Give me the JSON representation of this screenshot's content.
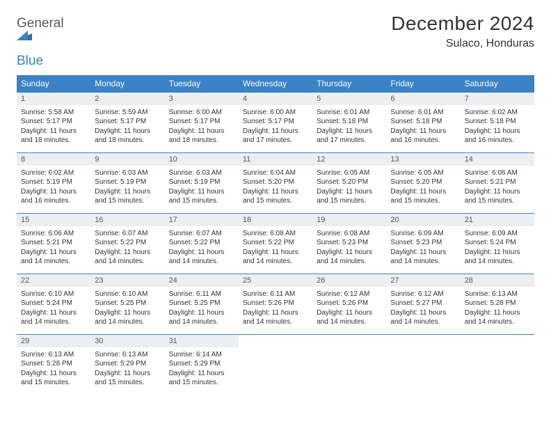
{
  "brand": {
    "general": "General",
    "blue": "Blue"
  },
  "title": "December 2024",
  "location": "Sulaco, Honduras",
  "colors": {
    "header_bg": "#3b82c4",
    "header_text": "#ffffff",
    "daynum_bg": "#eceff1",
    "border": "#3b82c4",
    "text": "#333333",
    "logo_gray": "#5a5a5a",
    "logo_blue": "#3b82c4",
    "page_bg": "#ffffff"
  },
  "fonts": {
    "title_size_pt": 21,
    "location_size_pt": 12,
    "header_size_pt": 9,
    "daynum_size_pt": 8,
    "body_size_pt": 7.5
  },
  "day_labels": [
    "Sunday",
    "Monday",
    "Tuesday",
    "Wednesday",
    "Thursday",
    "Friday",
    "Saturday"
  ],
  "weeks": [
    [
      {
        "n": "1",
        "sunrise": "Sunrise: 5:58 AM",
        "sunset": "Sunset: 5:17 PM",
        "daylight": "Daylight: 11 hours and 18 minutes."
      },
      {
        "n": "2",
        "sunrise": "Sunrise: 5:59 AM",
        "sunset": "Sunset: 5:17 PM",
        "daylight": "Daylight: 11 hours and 18 minutes."
      },
      {
        "n": "3",
        "sunrise": "Sunrise: 6:00 AM",
        "sunset": "Sunset: 5:17 PM",
        "daylight": "Daylight: 11 hours and 18 minutes."
      },
      {
        "n": "4",
        "sunrise": "Sunrise: 6:00 AM",
        "sunset": "Sunset: 5:17 PM",
        "daylight": "Daylight: 11 hours and 17 minutes."
      },
      {
        "n": "5",
        "sunrise": "Sunrise: 6:01 AM",
        "sunset": "Sunset: 5:18 PM",
        "daylight": "Daylight: 11 hours and 17 minutes."
      },
      {
        "n": "6",
        "sunrise": "Sunrise: 6:01 AM",
        "sunset": "Sunset: 5:18 PM",
        "daylight": "Daylight: 11 hours and 16 minutes."
      },
      {
        "n": "7",
        "sunrise": "Sunrise: 6:02 AM",
        "sunset": "Sunset: 5:18 PM",
        "daylight": "Daylight: 11 hours and 16 minutes."
      }
    ],
    [
      {
        "n": "8",
        "sunrise": "Sunrise: 6:02 AM",
        "sunset": "Sunset: 5:19 PM",
        "daylight": "Daylight: 11 hours and 16 minutes."
      },
      {
        "n": "9",
        "sunrise": "Sunrise: 6:03 AM",
        "sunset": "Sunset: 5:19 PM",
        "daylight": "Daylight: 11 hours and 15 minutes."
      },
      {
        "n": "10",
        "sunrise": "Sunrise: 6:03 AM",
        "sunset": "Sunset: 5:19 PM",
        "daylight": "Daylight: 11 hours and 15 minutes."
      },
      {
        "n": "11",
        "sunrise": "Sunrise: 6:04 AM",
        "sunset": "Sunset: 5:20 PM",
        "daylight": "Daylight: 11 hours and 15 minutes."
      },
      {
        "n": "12",
        "sunrise": "Sunrise: 6:05 AM",
        "sunset": "Sunset: 5:20 PM",
        "daylight": "Daylight: 11 hours and 15 minutes."
      },
      {
        "n": "13",
        "sunrise": "Sunrise: 6:05 AM",
        "sunset": "Sunset: 5:20 PM",
        "daylight": "Daylight: 11 hours and 15 minutes."
      },
      {
        "n": "14",
        "sunrise": "Sunrise: 6:06 AM",
        "sunset": "Sunset: 5:21 PM",
        "daylight": "Daylight: 11 hours and 15 minutes."
      }
    ],
    [
      {
        "n": "15",
        "sunrise": "Sunrise: 6:06 AM",
        "sunset": "Sunset: 5:21 PM",
        "daylight": "Daylight: 11 hours and 14 minutes."
      },
      {
        "n": "16",
        "sunrise": "Sunrise: 6:07 AM",
        "sunset": "Sunset: 5:22 PM",
        "daylight": "Daylight: 11 hours and 14 minutes."
      },
      {
        "n": "17",
        "sunrise": "Sunrise: 6:07 AM",
        "sunset": "Sunset: 5:22 PM",
        "daylight": "Daylight: 11 hours and 14 minutes."
      },
      {
        "n": "18",
        "sunrise": "Sunrise: 6:08 AM",
        "sunset": "Sunset: 5:22 PM",
        "daylight": "Daylight: 11 hours and 14 minutes."
      },
      {
        "n": "19",
        "sunrise": "Sunrise: 6:08 AM",
        "sunset": "Sunset: 5:23 PM",
        "daylight": "Daylight: 11 hours and 14 minutes."
      },
      {
        "n": "20",
        "sunrise": "Sunrise: 6:09 AM",
        "sunset": "Sunset: 5:23 PM",
        "daylight": "Daylight: 11 hours and 14 minutes."
      },
      {
        "n": "21",
        "sunrise": "Sunrise: 6:09 AM",
        "sunset": "Sunset: 5:24 PM",
        "daylight": "Daylight: 11 hours and 14 minutes."
      }
    ],
    [
      {
        "n": "22",
        "sunrise": "Sunrise: 6:10 AM",
        "sunset": "Sunset: 5:24 PM",
        "daylight": "Daylight: 11 hours and 14 minutes."
      },
      {
        "n": "23",
        "sunrise": "Sunrise: 6:10 AM",
        "sunset": "Sunset: 5:25 PM",
        "daylight": "Daylight: 11 hours and 14 minutes."
      },
      {
        "n": "24",
        "sunrise": "Sunrise: 6:11 AM",
        "sunset": "Sunset: 5:25 PM",
        "daylight": "Daylight: 11 hours and 14 minutes."
      },
      {
        "n": "25",
        "sunrise": "Sunrise: 6:11 AM",
        "sunset": "Sunset: 5:26 PM",
        "daylight": "Daylight: 11 hours and 14 minutes."
      },
      {
        "n": "26",
        "sunrise": "Sunrise: 6:12 AM",
        "sunset": "Sunset: 5:26 PM",
        "daylight": "Daylight: 11 hours and 14 minutes."
      },
      {
        "n": "27",
        "sunrise": "Sunrise: 6:12 AM",
        "sunset": "Sunset: 5:27 PM",
        "daylight": "Daylight: 11 hours and 14 minutes."
      },
      {
        "n": "28",
        "sunrise": "Sunrise: 6:13 AM",
        "sunset": "Sunset: 5:28 PM",
        "daylight": "Daylight: 11 hours and 14 minutes."
      }
    ],
    [
      {
        "n": "29",
        "sunrise": "Sunrise: 6:13 AM",
        "sunset": "Sunset: 5:28 PM",
        "daylight": "Daylight: 11 hours and 15 minutes."
      },
      {
        "n": "30",
        "sunrise": "Sunrise: 6:13 AM",
        "sunset": "Sunset: 5:29 PM",
        "daylight": "Daylight: 11 hours and 15 minutes."
      },
      {
        "n": "31",
        "sunrise": "Sunrise: 6:14 AM",
        "sunset": "Sunset: 5:29 PM",
        "daylight": "Daylight: 11 hours and 15 minutes."
      },
      null,
      null,
      null,
      null
    ]
  ]
}
